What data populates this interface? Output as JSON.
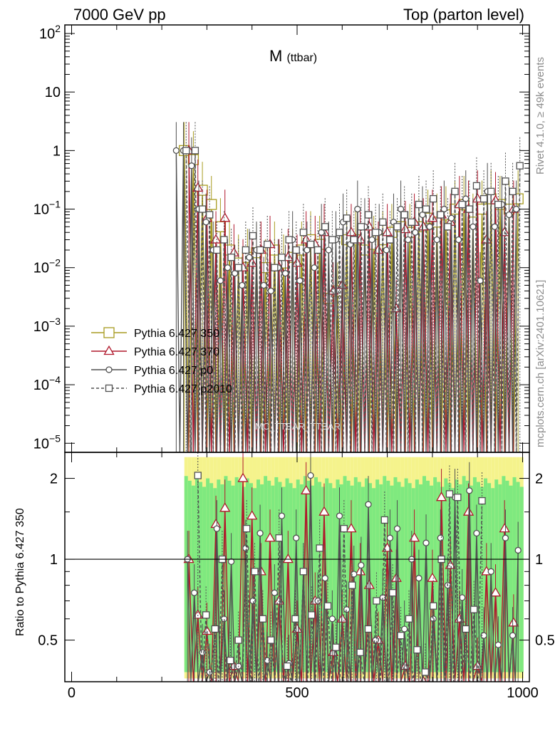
{
  "header": {
    "left": "7000 GeV pp",
    "right": "Top (parton level)"
  },
  "side_text": {
    "rivet": "Rivet 4.1.0, ≥ 49k events",
    "mcplots": "mcplots.cern.ch [arXiv:2401.10621]"
  },
  "colors": {
    "p350": "#a89c20",
    "p370": "#b0182c",
    "p0": "#505050",
    "p2010": "#505050",
    "band_green": "#7fe97f",
    "band_yellow": "#f5f38c"
  },
  "chart_data": [
    {
      "type": "line",
      "title": "M",
      "title_sub": "(ttbar)",
      "xlim": [
        -15,
        1015
      ],
      "ylim": [
        7e-06,
        140
      ],
      "yscale": "log",
      "yticks": [
        "10^{-5}",
        "10^{-4}",
        "10^{-3}",
        "10^{-2}",
        "10^{-1}",
        "1",
        "10",
        "10^{2}"
      ],
      "xticks": [
        "0",
        "500",
        "1000"
      ],
      "watermark": "MC_TTBAR_TTBAR",
      "legend_position": "left-middle",
      "series": [
        {
          "name": "Pythia 6.427 350",
          "marker": "square",
          "x": [
            250,
            270,
            290,
            310,
            330,
            350,
            370,
            390,
            410,
            430,
            450,
            470,
            490,
            510,
            530,
            550,
            570,
            590,
            610,
            630,
            650,
            670,
            690,
            710,
            730,
            750,
            770,
            790,
            810,
            830,
            850,
            870,
            890,
            910,
            930,
            950,
            970,
            990
          ],
          "values": [
            1.0,
            0.7,
            0.21,
            0.12,
            0.05,
            0.02,
            0.012,
            0.015,
            0.018,
            0.01,
            0.02,
            0.012,
            0.015,
            0.02,
            0.03,
            0.025,
            0.003,
            0.004,
            0.03,
            0.03,
            0.02,
            0.025,
            0.03,
            0.04,
            0.05,
            0.04,
            0.05,
            0.07,
            0.06,
            0.08,
            0.1,
            0.12,
            0.06,
            0.1,
            0.15,
            0.12,
            0.1,
            0.15
          ]
        },
        {
          "name": "Pythia 6.427 370",
          "marker": "triangle",
          "x": [
            260,
            280,
            300,
            320,
            340,
            360,
            380,
            400,
            420,
            440,
            460,
            480,
            500,
            520,
            540,
            560,
            580,
            600,
            620,
            640,
            660,
            680,
            700,
            720,
            740,
            760,
            780,
            800,
            820,
            840,
            860,
            880,
            900,
            920,
            940,
            960,
            980
          ],
          "values": [
            1.0,
            0.23,
            0.07,
            0.03,
            0.07,
            0.018,
            0.01,
            0.012,
            0.02,
            0.025,
            0.01,
            0.015,
            0.012,
            0.03,
            0.025,
            0.04,
            0.004,
            0.005,
            0.04,
            0.03,
            0.05,
            0.02,
            0.04,
            0.002,
            0.045,
            0.06,
            0.05,
            0.07,
            0.08,
            0.06,
            0.12,
            0.1,
            0.15,
            0.03,
            0.14,
            0.04,
            0.1
          ]
        },
        {
          "name": "Pythia 6.427 p0",
          "marker": "circle",
          "x": [
            232,
            248,
            266,
            282,
            298,
            314,
            330,
            346,
            362,
            378,
            394,
            410,
            426,
            442,
            458,
            474,
            490,
            506,
            522,
            538,
            554,
            570,
            586,
            602,
            618,
            634,
            650,
            666,
            682,
            698,
            714,
            730,
            746,
            762,
            778,
            794,
            810,
            826,
            842,
            858,
            874,
            890,
            906,
            922,
            938,
            954,
            970,
            986
          ],
          "values": [
            1.0,
            1.0,
            0.55,
            0.1,
            0.06,
            0.02,
            0.006,
            0.01,
            0.008,
            0.005,
            0.015,
            0.02,
            0.005,
            0.004,
            0.01,
            0.008,
            0.03,
            0.006,
            0.02,
            0.01,
            0.04,
            0.02,
            0.03,
            0.06,
            0.025,
            0.1,
            0.05,
            0.03,
            0.04,
            0.02,
            0.06,
            0.1,
            0.03,
            0.04,
            0.08,
            0.05,
            0.03,
            0.1,
            0.07,
            0.03,
            0.15,
            0.05,
            0.006,
            0.2,
            0.05,
            0.12,
            0.08,
            0.1
          ]
        },
        {
          "name": "Pythia 6.427 p2010",
          "marker": "square-open-small",
          "x": [
            254,
            274,
            290,
            306,
            322,
            338,
            354,
            370,
            386,
            402,
            418,
            434,
            450,
            466,
            482,
            498,
            514,
            530,
            546,
            562,
            578,
            594,
            610,
            626,
            642,
            658,
            674,
            690,
            706,
            722,
            738,
            754,
            770,
            786,
            802,
            818,
            834,
            850,
            866,
            882,
            898,
            914,
            930,
            946,
            962,
            978,
            994
          ],
          "values": [
            1.0,
            1.0,
            0.1,
            0.08,
            0.02,
            0.03,
            0.015,
            0.01,
            0.02,
            0.035,
            0.02,
            0.025,
            0.01,
            0.015,
            0.03,
            0.02,
            0.04,
            0.025,
            0.02,
            0.05,
            0.03,
            0.04,
            0.07,
            0.03,
            0.05,
            0.08,
            0.04,
            0.06,
            0.03,
            0.05,
            0.08,
            0.06,
            0.12,
            0.1,
            0.15,
            0.08,
            0.05,
            0.2,
            0.12,
            0.1,
            0.25,
            0.15,
            0.2,
            0.12,
            0.3,
            0.2,
            0.55
          ]
        }
      ]
    },
    {
      "type": "line",
      "ylabel": "Ratio to Pythia 6.427 350",
      "xlim": [
        -15,
        1015
      ],
      "ylim": [
        0.35,
        2.5
      ],
      "yscale": "log",
      "yticks": [
        "0.5",
        "1",
        "2"
      ],
      "xticks": [
        "0",
        "500",
        "1000"
      ],
      "reference_line": 1,
      "series": [
        {
          "name": "Pythia 6.427 370",
          "marker": "triangle",
          "x": [
            260,
            280,
            300,
            320,
            340,
            360,
            380,
            400,
            420,
            440,
            460,
            480,
            500,
            520,
            540,
            560,
            580,
            600,
            620,
            640,
            660,
            680,
            700,
            720,
            740,
            760,
            780,
            800,
            820,
            840,
            860,
            880,
            900,
            920,
            940,
            960,
            980
          ],
          "values": [
            1.0,
            0.62,
            0.54,
            1.35,
            1.55,
            0.4,
            2.0,
            1.45,
            0.9,
            1.2,
            0.7,
            1.0,
            0.55,
            1.8,
            0.7,
            1.5,
            0.45,
            0.6,
            1.3,
            0.9,
            0.8,
            0.5,
            1.1,
            0.85,
            0.4,
            1.2,
            0.35,
            0.85,
            1.7,
            0.95,
            0.6,
            1.5,
            0.4,
            0.9,
            0.75,
            1.3,
            0.58
          ]
        },
        {
          "name": "Pythia 6.427 p0",
          "marker": "circle",
          "x": [
            257,
            272,
            290,
            306,
            322,
            338,
            354,
            370,
            386,
            402,
            418,
            434,
            450,
            466,
            482,
            498,
            514,
            530,
            546,
            562,
            578,
            594,
            610,
            626,
            642,
            658,
            674,
            690,
            706,
            722,
            738,
            754,
            770,
            786,
            802,
            818,
            834,
            850,
            866,
            882,
            898,
            914,
            930,
            946,
            962,
            978,
            990
          ],
          "values": [
            1.0,
            0.75,
            0.45,
            0.38,
            1.3,
            0.6,
            0.98,
            0.4,
            1.1,
            0.7,
            1.25,
            0.42,
            0.75,
            1.45,
            0.41,
            1.2,
            0.9,
            2.05,
            0.7,
            0.85,
            0.6,
            1.45,
            0.65,
            0.88,
            0.95,
            1.6,
            0.5,
            0.72,
            1.2,
            1.3,
            0.55,
            1.0,
            0.85,
            1.15,
            0.6,
            1.2,
            0.8,
            1.7,
            0.72,
            1.8,
            1.25,
            0.52,
            0.9,
            0.48,
            1.2,
            0.52,
            1.08
          ]
        },
        {
          "name": "Pythia 6.427 p2010",
          "marker": "square-open-small",
          "x": [
            280,
            298,
            318,
            334,
            352,
            370,
            388,
            406,
            424,
            442,
            460,
            478,
            496,
            514,
            532,
            550,
            568,
            586,
            604,
            622,
            640,
            658,
            676,
            694,
            712,
            730,
            748,
            766,
            784,
            802,
            820,
            838,
            856,
            874,
            892,
            910
          ],
          "values": [
            2.05,
            0.62,
            0.55,
            1.0,
            0.42,
            0.5,
            1.3,
            0.9,
            0.6,
            0.5,
            1.2,
            0.4,
            0.6,
            0.9,
            0.62,
            1.1,
            0.67,
            0.47,
            1.3,
            0.8,
            0.45,
            0.55,
            0.7,
            1.4,
            0.75,
            0.52,
            0.6,
            0.46,
            0.38,
            0.67,
            1.0,
            1.75,
            1.7,
            0.55,
            0.65,
            1.65
          ]
        }
      ]
    }
  ]
}
